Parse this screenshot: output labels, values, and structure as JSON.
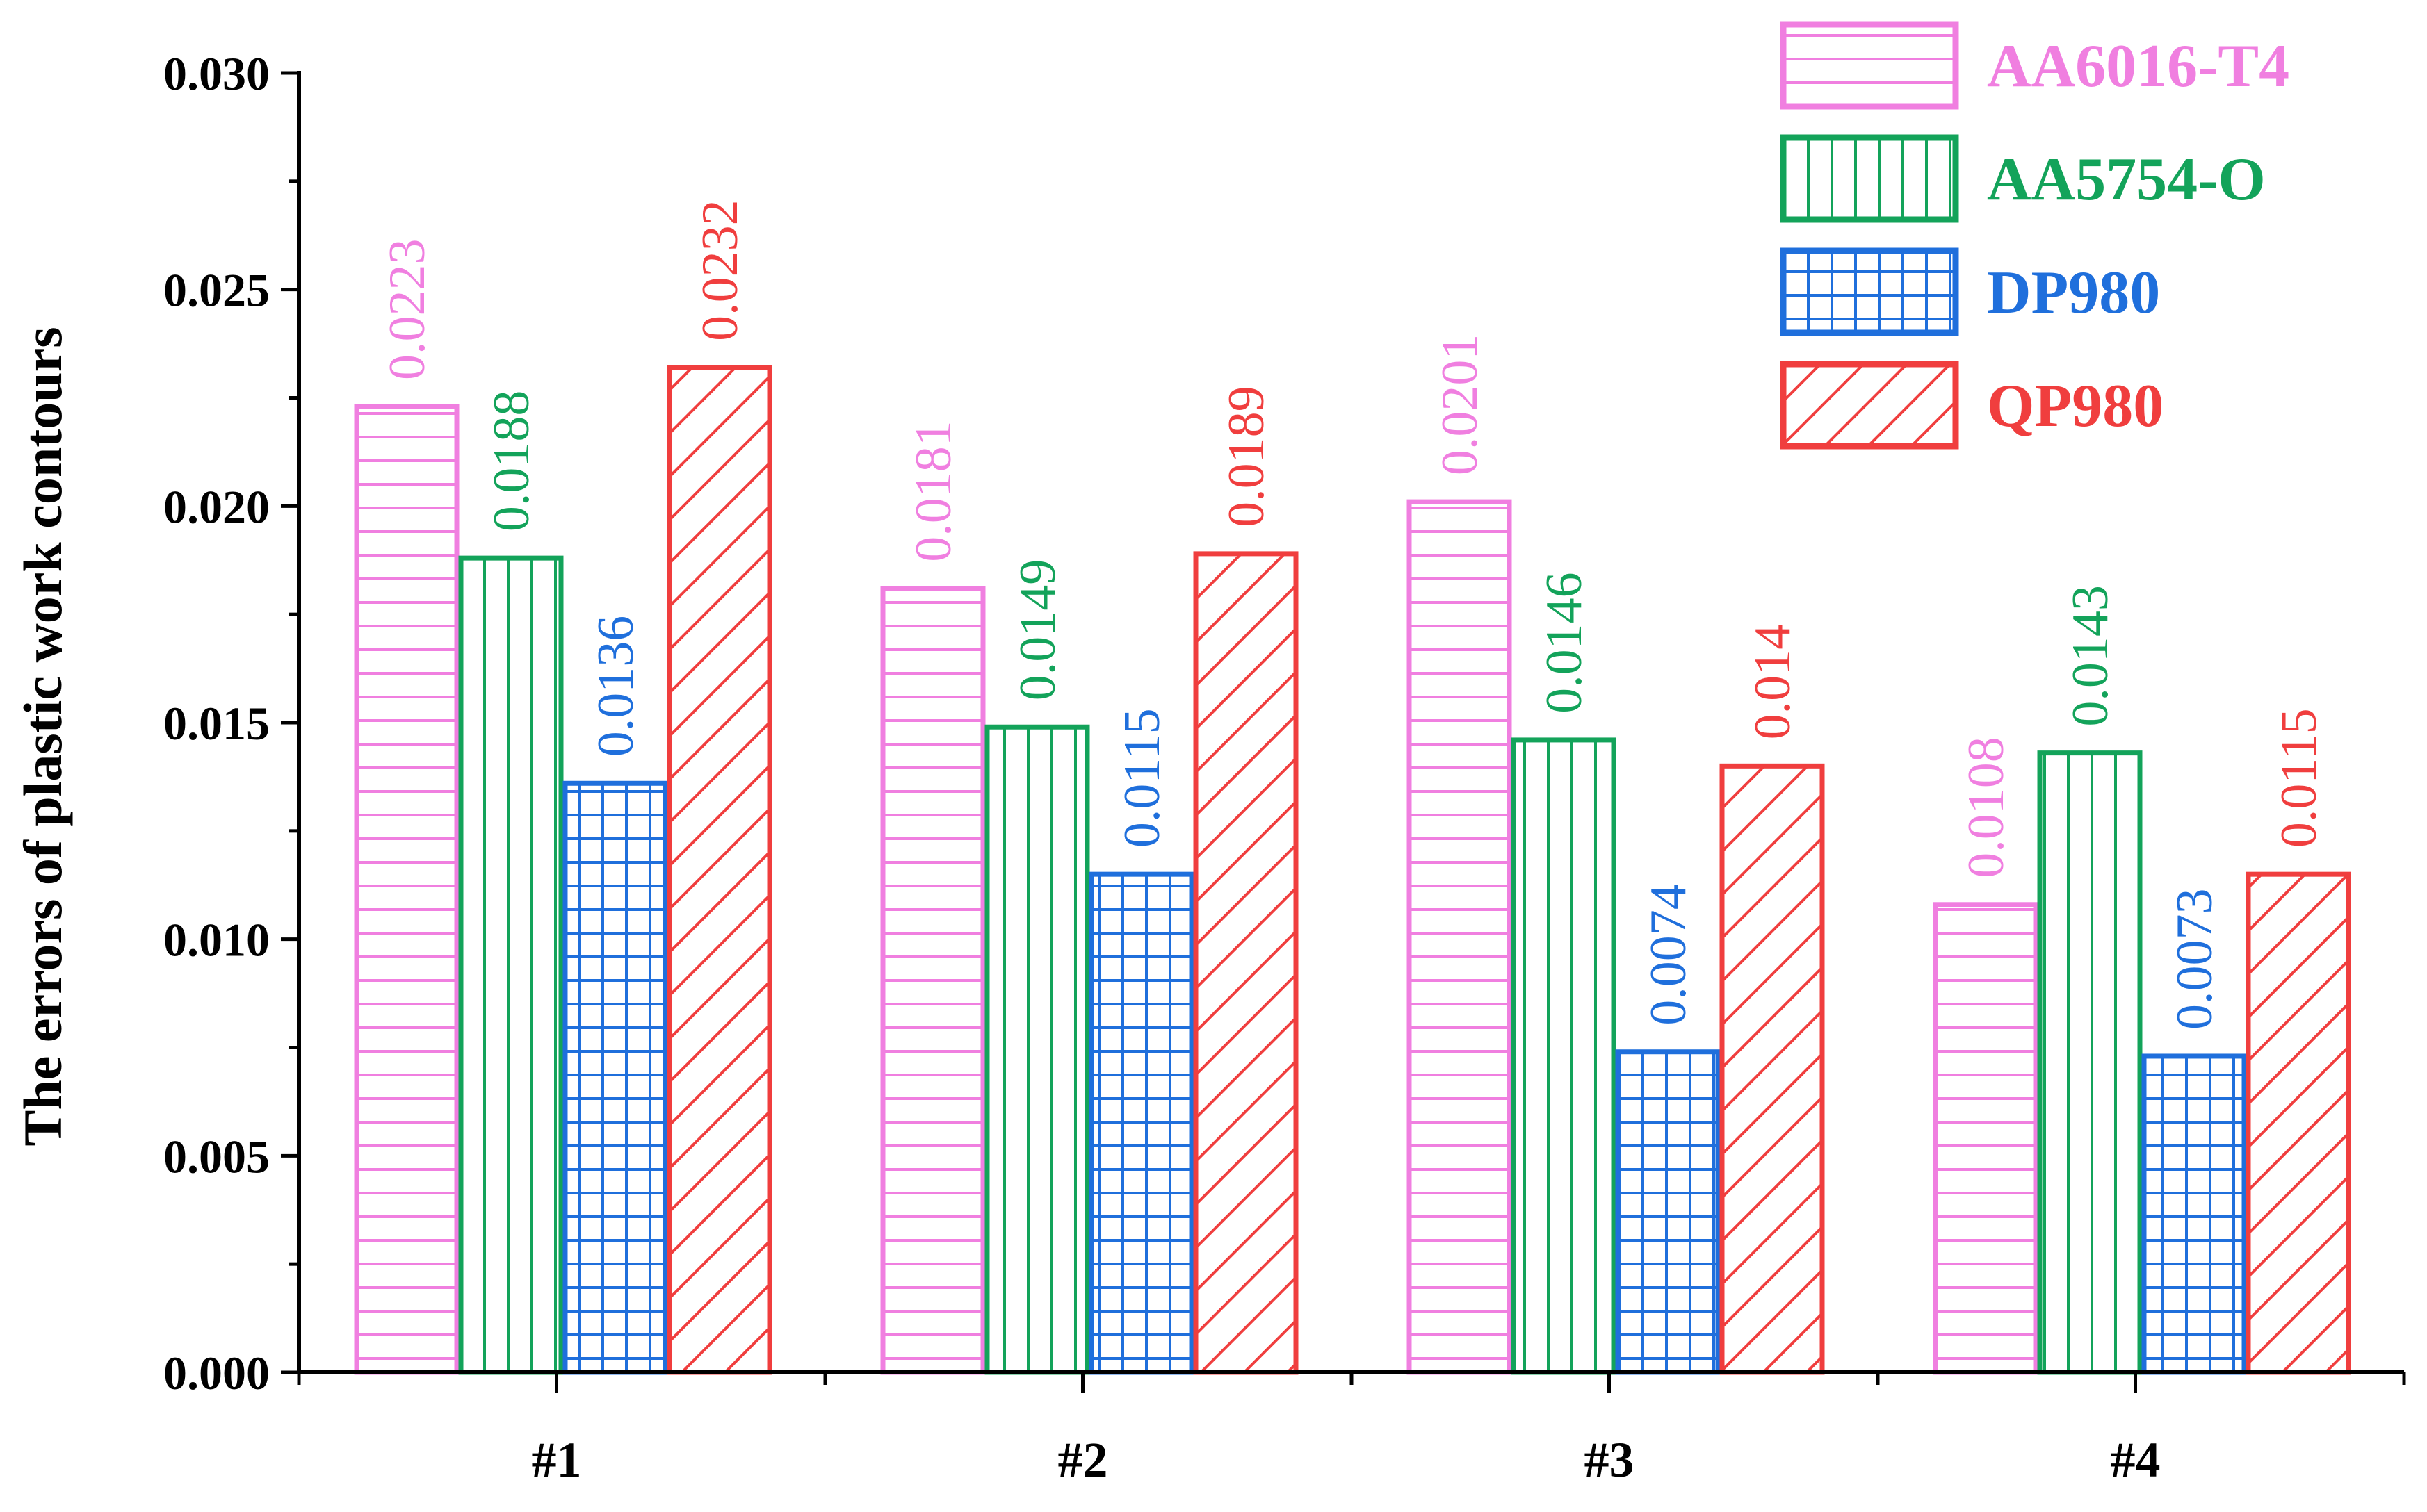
{
  "chart_data": {
    "type": "bar",
    "title": "",
    "xlabel": "",
    "ylabel": "The errors of plastic work contours",
    "categories": [
      "#1",
      "#2",
      "#3",
      "#4"
    ],
    "ylim": [
      0,
      0.03
    ],
    "yticks": [
      "0.000",
      "0.005",
      "0.010",
      "0.015",
      "0.020",
      "0.025",
      "0.030"
    ],
    "legend_position": "top-right",
    "series": [
      {
        "name": "AA6016-T4",
        "color": "#f07fe0",
        "pattern": "horizontal-lines",
        "values": [
          0.0223,
          0.0181,
          0.0201,
          0.0108
        ],
        "labels": [
          "0.0223",
          "0.0181",
          "0.0201",
          "0.0108"
        ]
      },
      {
        "name": "AA5754-O",
        "color": "#13a35a",
        "pattern": "vertical-lines",
        "values": [
          0.0188,
          0.0149,
          0.0146,
          0.0143
        ],
        "labels": [
          "0.0188",
          "0.0149",
          "0.0146",
          "0.0143"
        ]
      },
      {
        "name": "DP980",
        "color": "#1f6fdc",
        "pattern": "grid",
        "values": [
          0.0136,
          0.0115,
          0.0074,
          0.0073
        ],
        "labels": [
          "0.0136",
          "0.0115",
          "0.0074",
          "0.0073"
        ]
      },
      {
        "name": "QP980",
        "color": "#f03e3e",
        "pattern": "diagonal-lines",
        "values": [
          0.0232,
          0.0189,
          0.014,
          0.0115
        ],
        "labels": [
          "0.0232",
          "0.0189",
          "0.014",
          "0.0115"
        ]
      }
    ]
  }
}
